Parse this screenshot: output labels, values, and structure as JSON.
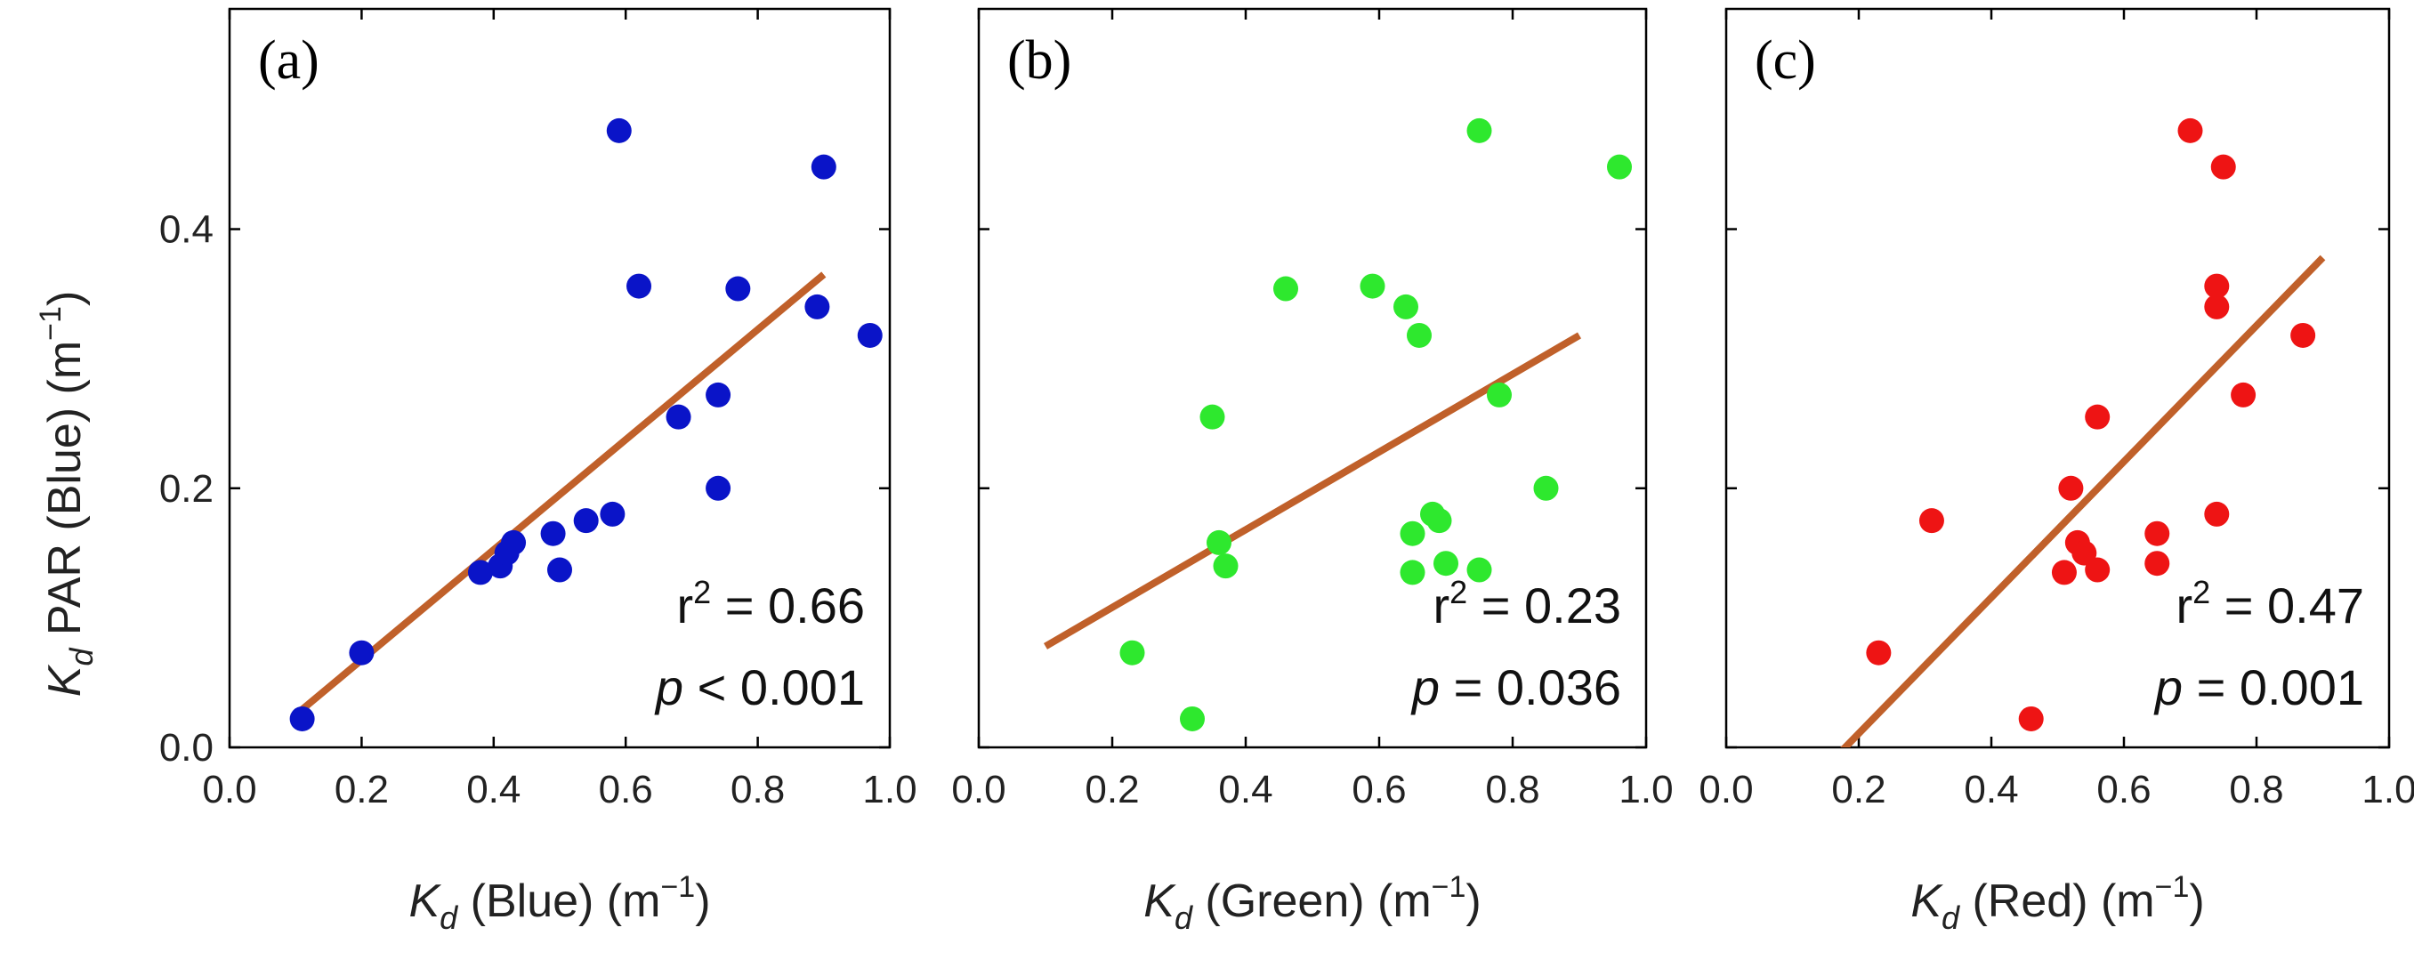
{
  "figure": {
    "ylabel_main": "K",
    "ylabel_sub": "d",
    "ylabel_rest": " PAR (Blue) (m",
    "ylabel_exp": "−1",
    "ylabel_close": ")"
  },
  "chart_data": [
    {
      "type": "scatter",
      "panel_tag": "(a)",
      "color": "#0a14c8",
      "line_color": "#c0602a",
      "xlabel_main": "K",
      "xlabel_sub": "d",
      "xlabel_rest": " (Blue) (m",
      "xlabel_exp": "−1",
      "xlabel_close": ")",
      "xlim": [
        0,
        1
      ],
      "ylim": [
        0,
        0.57
      ],
      "xticks": [
        "0.0",
        "0.2",
        "0.4",
        "0.6",
        "0.8",
        "1.0"
      ],
      "yticks": [
        "0.0",
        "0.2",
        "0.4"
      ],
      "ytick_values": [
        0,
        0.2,
        0.4
      ],
      "points": [
        [
          0.11,
          0.022
        ],
        [
          0.2,
          0.073
        ],
        [
          0.38,
          0.135
        ],
        [
          0.41,
          0.14
        ],
        [
          0.42,
          0.15
        ],
        [
          0.43,
          0.158
        ],
        [
          0.49,
          0.165
        ],
        [
          0.5,
          0.137
        ],
        [
          0.54,
          0.175
        ],
        [
          0.58,
          0.18
        ],
        [
          0.59,
          0.476
        ],
        [
          0.62,
          0.356
        ],
        [
          0.68,
          0.255
        ],
        [
          0.74,
          0.2
        ],
        [
          0.74,
          0.272
        ],
        [
          0.77,
          0.354
        ],
        [
          0.89,
          0.34
        ],
        [
          0.9,
          0.448
        ],
        [
          0.97,
          0.318
        ]
      ],
      "fit_line": [
        [
          0.1,
          0.025
        ],
        [
          0.9,
          0.365
        ]
      ],
      "r2_label": "r",
      "r2_exp": "2",
      "r2_value": " = 0.66",
      "p_label": "p",
      "p_value": " < 0.001"
    },
    {
      "type": "scatter",
      "panel_tag": "(b)",
      "color": "#2ee82e",
      "line_color": "#c0602a",
      "xlabel_main": "K",
      "xlabel_sub": "d",
      "xlabel_rest": " (Green) (m",
      "xlabel_exp": "−1",
      "xlabel_close": ")",
      "xlim": [
        0,
        1
      ],
      "ylim": [
        0,
        0.57
      ],
      "xticks": [
        "0.0",
        "0.2",
        "0.4",
        "0.6",
        "0.8",
        "1.0"
      ],
      "yticks": [],
      "ytick_values": [
        0,
        0.2,
        0.4
      ],
      "points": [
        [
          0.23,
          0.073
        ],
        [
          0.32,
          0.022
        ],
        [
          0.35,
          0.255
        ],
        [
          0.36,
          0.158
        ],
        [
          0.37,
          0.14
        ],
        [
          0.46,
          0.354
        ],
        [
          0.59,
          0.356
        ],
        [
          0.64,
          0.34
        ],
        [
          0.65,
          0.135
        ],
        [
          0.65,
          0.165
        ],
        [
          0.66,
          0.318
        ],
        [
          0.68,
          0.18
        ],
        [
          0.69,
          0.175
        ],
        [
          0.7,
          0.142
        ],
        [
          0.75,
          0.476
        ],
        [
          0.75,
          0.137
        ],
        [
          0.78,
          0.272
        ],
        [
          0.85,
          0.2
        ],
        [
          0.96,
          0.448
        ]
      ],
      "fit_line": [
        [
          0.1,
          0.078
        ],
        [
          0.9,
          0.318
        ]
      ],
      "r2_label": "r",
      "r2_exp": "2",
      "r2_value": " = 0.23",
      "p_label": "p",
      "p_value": " = 0.036"
    },
    {
      "type": "scatter",
      "panel_tag": "(c)",
      "color": "#ee1414",
      "line_color": "#c0602a",
      "xlabel_main": "K",
      "xlabel_sub": "d",
      "xlabel_rest": " (Red) (m",
      "xlabel_exp": "−1",
      "xlabel_close": ")",
      "xlim": [
        0,
        1
      ],
      "ylim": [
        0,
        0.57
      ],
      "xticks": [
        "0.0",
        "0.2",
        "0.4",
        "0.6",
        "0.8",
        "1.0"
      ],
      "yticks": [],
      "ytick_values": [
        0,
        0.2,
        0.4
      ],
      "points": [
        [
          0.23,
          0.073
        ],
        [
          0.31,
          0.175
        ],
        [
          0.46,
          0.022
        ],
        [
          0.51,
          0.135
        ],
        [
          0.52,
          0.2
        ],
        [
          0.53,
          0.158
        ],
        [
          0.54,
          0.15
        ],
        [
          0.56,
          0.137
        ],
        [
          0.56,
          0.255
        ],
        [
          0.65,
          0.142
        ],
        [
          0.65,
          0.165
        ],
        [
          0.7,
          0.476
        ],
        [
          0.74,
          0.18
        ],
        [
          0.74,
          0.34
        ],
        [
          0.74,
          0.356
        ],
        [
          0.75,
          0.448
        ],
        [
          0.78,
          0.272
        ],
        [
          0.87,
          0.318
        ]
      ],
      "fit_line": [
        [
          0.17,
          -0.005
        ],
        [
          0.9,
          0.378
        ]
      ],
      "r2_label": "r",
      "r2_exp": "2",
      "r2_value": " = 0.47",
      "p_label": "p",
      "p_value": " = 0.001"
    }
  ]
}
